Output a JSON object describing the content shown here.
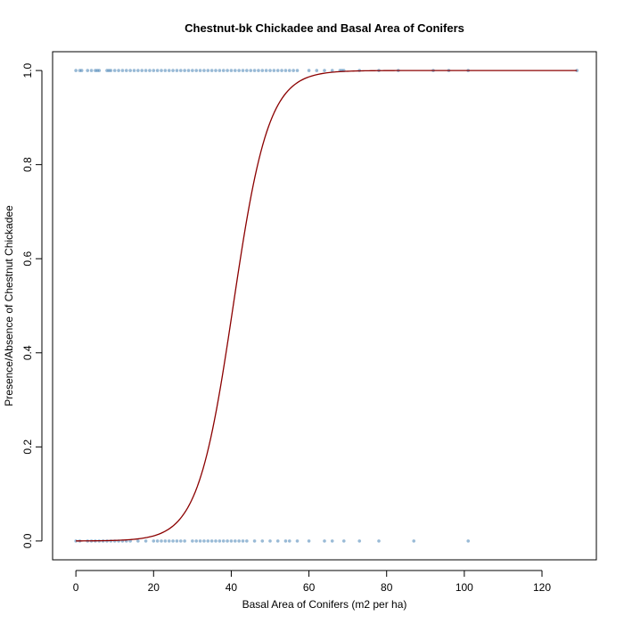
{
  "chart_data": {
    "type": "scatter",
    "title": "Chestnut-bk Chickadee and Basal Area of Conifers",
    "xlabel": "Basal Area of Conifers (m2 per ha)",
    "ylabel": "Presence/Absence of Chestnut Chickadee",
    "xlim": [
      -6,
      134
    ],
    "ylim": [
      -0.04,
      1.04
    ],
    "xticks": [
      0,
      20,
      40,
      60,
      80,
      100,
      120
    ],
    "yticks": [
      0.0,
      0.2,
      0.4,
      0.6,
      0.8,
      1.0
    ],
    "xtick_labels": [
      "0",
      "20",
      "40",
      "60",
      "80",
      "100",
      "120"
    ],
    "ytick_labels": [
      "0.0",
      "0.2",
      "0.4",
      "0.6",
      "0.8",
      "1.0"
    ],
    "grid": false,
    "legend": "none",
    "point_color": "#4682b4",
    "curve_color": "#8b0000",
    "series": [
      {
        "kind": "points",
        "y": 1,
        "x": [
          0,
          1,
          1.5,
          3,
          4,
          5,
          5.5,
          6,
          8,
          8.5,
          9,
          10,
          11,
          12,
          13,
          14,
          15,
          16,
          17,
          18,
          19,
          20,
          21,
          22,
          23,
          24,
          25,
          26,
          27,
          28,
          29,
          30,
          31,
          32,
          33,
          34,
          35,
          36,
          37,
          38,
          39,
          40,
          41,
          42,
          43,
          44,
          45,
          46,
          47,
          48,
          49,
          50,
          51,
          52,
          53,
          54,
          55,
          56,
          57,
          60,
          62,
          64,
          66,
          68,
          68.5,
          69,
          73,
          78,
          83,
          92,
          96,
          101,
          129
        ]
      },
      {
        "kind": "points",
        "y": 0,
        "x": [
          0,
          1,
          3,
          4,
          5,
          6,
          7,
          8,
          9,
          10,
          11,
          12,
          13,
          14,
          16,
          18,
          20,
          21,
          22,
          23,
          24,
          25,
          26,
          27,
          28,
          30,
          31,
          32,
          33,
          34,
          35,
          36,
          37,
          38,
          39,
          40,
          41,
          42,
          43,
          44,
          46,
          48,
          50,
          52,
          54,
          55,
          57,
          60,
          64,
          66,
          69,
          73,
          78,
          87,
          101
        ]
      },
      {
        "kind": "logistic-curve",
        "midpoint": 40.5,
        "slope": 0.22,
        "x_start": 0,
        "x_end": 129
      }
    ]
  }
}
